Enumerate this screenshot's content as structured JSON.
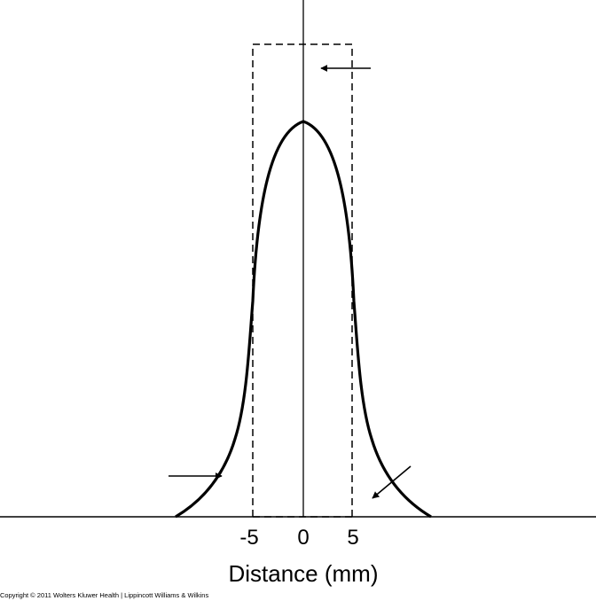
{
  "figure": {
    "tick_labels": [
      "-5",
      "0",
      "5"
    ],
    "x_axis_label": "Distance (mm)",
    "copyright": "Copyright © 2011 Wolters Kluwer Health | Lippincott Williams & Wilkins"
  },
  "chart_data": {
    "type": "line",
    "x_unit": "mm",
    "xlabel": "Distance (mm)",
    "ylabel": "",
    "xlim": [
      -12.5,
      30
    ],
    "ylim": [
      0,
      1.3
    ],
    "x_ticks": [
      -5,
      0,
      5
    ],
    "series": [
      {
        "style": "solid",
        "x": [
          -13,
          -12,
          -10,
          -8,
          -7,
          -6,
          -5,
          -4,
          -3,
          -2,
          -1,
          0,
          1,
          2,
          3,
          4,
          5,
          6,
          7,
          8,
          10,
          12,
          13
        ],
        "y": [
          0.0,
          0.01,
          0.05,
          0.11,
          0.16,
          0.25,
          0.47,
          0.73,
          0.88,
          0.96,
          0.99,
          1.0,
          0.99,
          0.96,
          0.88,
          0.73,
          0.47,
          0.25,
          0.16,
          0.11,
          0.05,
          0.01,
          0.0
        ]
      },
      {
        "style": "dashed",
        "x": [
          -5,
          -5,
          5,
          5
        ],
        "y": [
          0,
          1.19,
          1.19,
          0
        ]
      }
    ],
    "annotations": [
      {
        "type": "arrow",
        "direction": "left",
        "target": "top of dashed profile"
      },
      {
        "type": "arrow",
        "direction": "right",
        "target": "left tail of solid curve"
      },
      {
        "type": "arrow",
        "direction": "down-left",
        "target": "right tail of solid curve"
      }
    ],
    "colors": {
      "line": "#000000",
      "background": "#ffffff"
    }
  }
}
